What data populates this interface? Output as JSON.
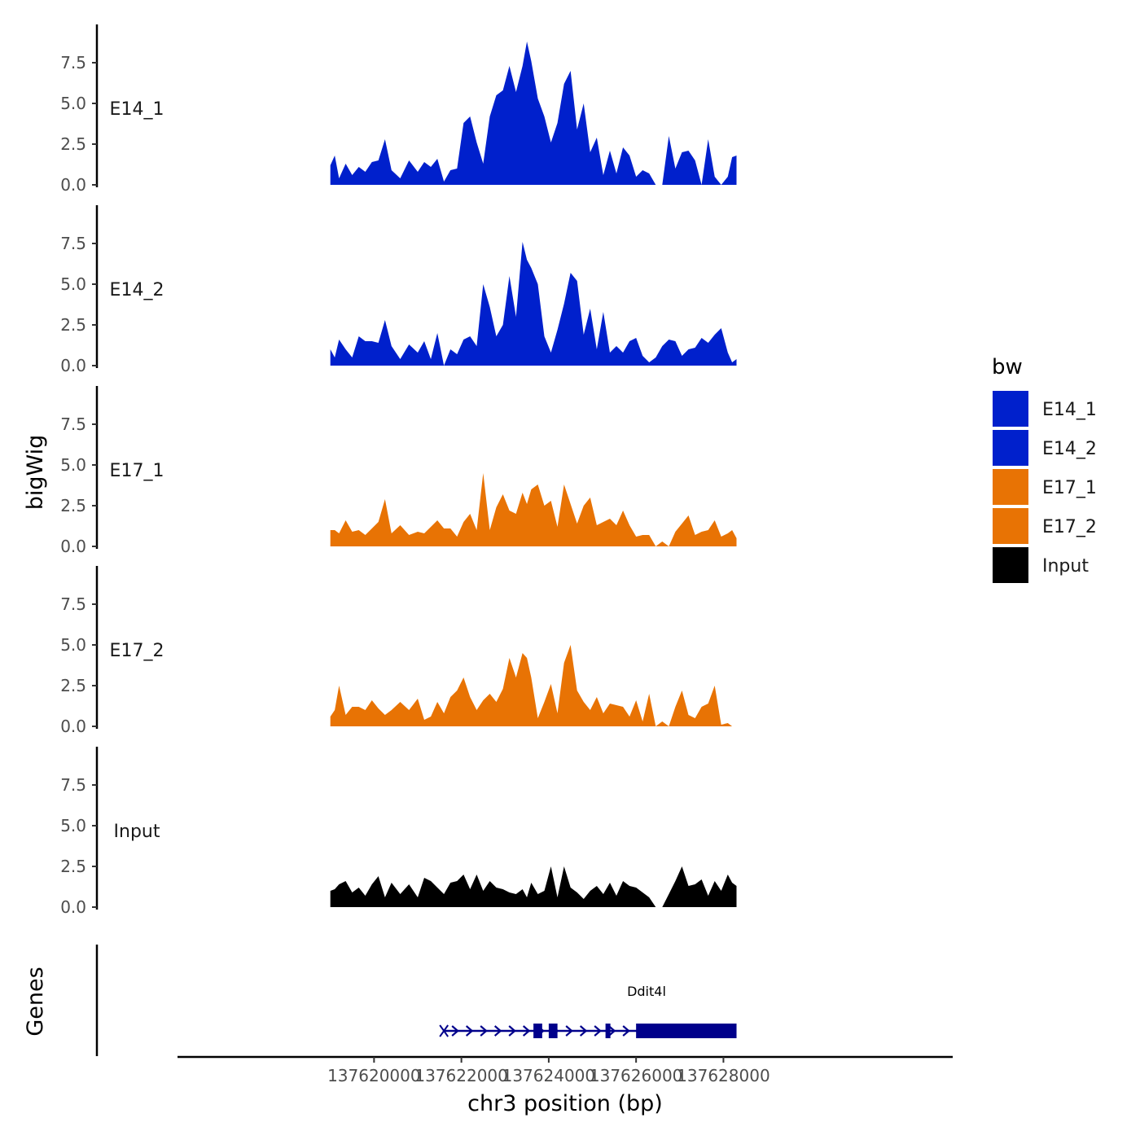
{
  "chart_data": {
    "type": "area",
    "chromosome": "chr3",
    "xlabel": "chr3 position (bp)",
    "ylabel": "bigWig",
    "genes_label": "Genes",
    "xlim": [
      137615500,
      137633250
    ],
    "x_ticks": [
      137620000,
      137622000,
      137624000,
      137626000,
      137628000
    ],
    "x_tick_labels": [
      "137620000",
      "137622000",
      "137624000",
      "137626000",
      "137628000"
    ],
    "ylim": [
      0,
      10
    ],
    "y_ticks": [
      0,
      2.5,
      5,
      7.5
    ],
    "y_tick_labels": [
      "0.0",
      "2.5",
      "5.0",
      "7.5"
    ],
    "legend": {
      "title": "bw",
      "position": "right",
      "entries": [
        {
          "label": "E14_1",
          "color": "#0020CC"
        },
        {
          "label": "E14_2",
          "color": "#0020CC"
        },
        {
          "label": "E17_1",
          "color": "#E87304"
        },
        {
          "label": "E17_2",
          "color": "#E87304"
        },
        {
          "label": "Input",
          "color": "#000000"
        }
      ]
    },
    "series": [
      {
        "name": "E14_1",
        "color": "#0020CC",
        "x": [
          137619000,
          137619100,
          137619200,
          137619350,
          137619500,
          137619650,
          137619800,
          137619950,
          137620100,
          137620250,
          137620400,
          137620600,
          137620800,
          137621000,
          137621150,
          137621300,
          137621450,
          137621600,
          137621750,
          137621900,
          137622050,
          137622200,
          137622350,
          137622500,
          137622650,
          137622800,
          137622950,
          137623100,
          137623250,
          137623400,
          137623500,
          137623600,
          137623750,
          137623900,
          137624050,
          137624200,
          137624350,
          137624500,
          137624650,
          137624800,
          137624950,
          137625100,
          137625250,
          137625400,
          137625550,
          137625700,
          137625850,
          137626000,
          137626150,
          137626300,
          137626450,
          137626600,
          137626750,
          137626900,
          137627050,
          137627200,
          137627350,
          137627500,
          137627650,
          137627800,
          137627950,
          137628100,
          137628200,
          137628300
        ],
        "y": [
          1.2,
          1.8,
          0.4,
          1.3,
          0.6,
          1.1,
          0.8,
          1.4,
          1.5,
          2.8,
          0.9,
          0.4,
          1.5,
          0.8,
          1.4,
          1.1,
          1.6,
          0.2,
          0.9,
          1.0,
          3.8,
          4.2,
          2.6,
          1.3,
          4.2,
          5.5,
          5.8,
          7.3,
          5.7,
          7.3,
          8.8,
          7.6,
          5.3,
          4.2,
          2.6,
          3.8,
          6.2,
          7.0,
          3.4,
          5.0,
          2.0,
          2.9,
          0.6,
          2.1,
          0.7,
          2.3,
          1.8,
          0.5,
          0.9,
          0.7,
          0.0,
          0.0,
          3.0,
          1.0,
          2.0,
          2.1,
          1.5,
          0.0,
          2.8,
          0.5,
          0.0,
          0.5,
          1.7,
          1.8
        ]
      },
      {
        "name": "E14_2",
        "color": "#0020CC",
        "x": [
          137619000,
          137619100,
          137619200,
          137619350,
          137619500,
          137619650,
          137619800,
          137619950,
          137620100,
          137620250,
          137620400,
          137620600,
          137620800,
          137621000,
          137621150,
          137621300,
          137621450,
          137621600,
          137621750,
          137621900,
          137622050,
          137622200,
          137622350,
          137622500,
          137622650,
          137622800,
          137622950,
          137623100,
          137623250,
          137623400,
          137623500,
          137623600,
          137623750,
          137623900,
          137624050,
          137624200,
          137624350,
          137624500,
          137624650,
          137624800,
          137624950,
          137625100,
          137625250,
          137625400,
          137625550,
          137625700,
          137625850,
          137626000,
          137626150,
          137626300,
          137626450,
          137626600,
          137626750,
          137626900,
          137627050,
          137627200,
          137627350,
          137627500,
          137627650,
          137627800,
          137627950,
          137628100,
          137628200,
          137628300
        ],
        "y": [
          1.0,
          0.5,
          1.6,
          1.0,
          0.5,
          1.8,
          1.5,
          1.5,
          1.4,
          2.8,
          1.2,
          0.4,
          1.3,
          0.8,
          1.5,
          0.4,
          2.0,
          0.0,
          1.0,
          0.7,
          1.6,
          1.8,
          1.2,
          5.0,
          3.6,
          1.8,
          2.5,
          5.5,
          3.0,
          7.6,
          6.5,
          6.0,
          5.0,
          1.8,
          0.8,
          2.2,
          3.8,
          5.7,
          5.2,
          1.9,
          3.5,
          1.0,
          3.3,
          0.8,
          1.2,
          0.8,
          1.5,
          1.7,
          0.6,
          0.2,
          0.5,
          1.2,
          1.6,
          1.5,
          0.6,
          1.0,
          1.1,
          1.7,
          1.4,
          1.9,
          2.3,
          0.8,
          0.2,
          0.4
        ]
      },
      {
        "name": "E17_1",
        "color": "#E87304",
        "x": [
          137619000,
          137619100,
          137619200,
          137619350,
          137619500,
          137619650,
          137619800,
          137619950,
          137620100,
          137620250,
          137620400,
          137620600,
          137620800,
          137621000,
          137621150,
          137621300,
          137621450,
          137621600,
          137621750,
          137621900,
          137622050,
          137622200,
          137622350,
          137622500,
          137622650,
          137622800,
          137622950,
          137623100,
          137623250,
          137623400,
          137623500,
          137623600,
          137623750,
          137623900,
          137624050,
          137624200,
          137624350,
          137624500,
          137624650,
          137624800,
          137624950,
          137625100,
          137625250,
          137625400,
          137625550,
          137625700,
          137625850,
          137626000,
          137626150,
          137626300,
          137626450,
          137626600,
          137626750,
          137626900,
          137627050,
          137627200,
          137627350,
          137627500,
          137627650,
          137627800,
          137627950,
          137628100,
          137628200,
          137628300
        ],
        "y": [
          1.0,
          1.0,
          0.8,
          1.6,
          0.9,
          1.0,
          0.7,
          1.1,
          1.5,
          2.9,
          0.8,
          1.3,
          0.7,
          0.9,
          0.8,
          1.2,
          1.6,
          1.1,
          1.1,
          0.6,
          1.5,
          2.0,
          1.0,
          4.5,
          1.0,
          2.4,
          3.2,
          2.2,
          2.0,
          3.3,
          2.6,
          3.5,
          3.8,
          2.5,
          2.8,
          1.2,
          3.8,
          2.6,
          1.4,
          2.5,
          3.0,
          1.3,
          1.5,
          1.7,
          1.3,
          2.2,
          1.3,
          0.6,
          0.7,
          0.7,
          0.0,
          0.3,
          0.0,
          0.9,
          1.4,
          1.9,
          0.7,
          0.9,
          1.0,
          1.6,
          0.6,
          0.8,
          1.0,
          0.5
        ]
      },
      {
        "name": "E17_2",
        "color": "#E87304",
        "x": [
          137619000,
          137619100,
          137619200,
          137619350,
          137619500,
          137619650,
          137619800,
          137619950,
          137620100,
          137620250,
          137620400,
          137620600,
          137620800,
          137621000,
          137621150,
          137621300,
          137621450,
          137621600,
          137621750,
          137621900,
          137622050,
          137622200,
          137622350,
          137622500,
          137622650,
          137622800,
          137622950,
          137623100,
          137623250,
          137623400,
          137623500,
          137623600,
          137623750,
          137623900,
          137624050,
          137624200,
          137624350,
          137624500,
          137624650,
          137624800,
          137624950,
          137625100,
          137625250,
          137625400,
          137625550,
          137625700,
          137625850,
          137626000,
          137626150,
          137626300,
          137626450,
          137626600,
          137626750,
          137626900,
          137627050,
          137627200,
          137627350,
          137627500,
          137627650,
          137627800,
          137627950,
          137628100,
          137628200,
          137628300
        ],
        "y": [
          0.6,
          1.0,
          2.5,
          0.7,
          1.2,
          1.2,
          1.0,
          1.6,
          1.1,
          0.7,
          1.0,
          1.5,
          1.0,
          1.7,
          0.4,
          0.6,
          1.5,
          0.8,
          1.8,
          2.2,
          3.0,
          1.8,
          1.0,
          1.6,
          2.0,
          1.5,
          2.3,
          4.2,
          3.0,
          4.5,
          4.2,
          3.0,
          0.5,
          1.5,
          2.6,
          0.8,
          3.9,
          5.0,
          2.2,
          1.5,
          1.0,
          1.8,
          0.8,
          1.4,
          1.3,
          1.2,
          0.6,
          1.6,
          0.3,
          2.0,
          0.0,
          0.3,
          0.0,
          1.2,
          2.2,
          0.7,
          0.5,
          1.2,
          1.4,
          2.5,
          0.1,
          0.2,
          0.0,
          0.0
        ]
      },
      {
        "name": "Input",
        "color": "#000000",
        "x": [
          137619000,
          137619100,
          137619200,
          137619350,
          137619500,
          137619650,
          137619800,
          137619950,
          137620100,
          137620250,
          137620400,
          137620600,
          137620800,
          137621000,
          137621150,
          137621300,
          137621450,
          137621600,
          137621750,
          137621900,
          137622050,
          137622200,
          137622350,
          137622500,
          137622650,
          137622800,
          137622950,
          137623100,
          137623250,
          137623400,
          137623500,
          137623600,
          137623750,
          137623900,
          137624050,
          137624200,
          137624350,
          137624500,
          137624650,
          137624800,
          137624950,
          137625100,
          137625250,
          137625400,
          137625550,
          137625700,
          137625850,
          137626000,
          137626150,
          137626300,
          137626450,
          137626600,
          137626750,
          137626900,
          137627050,
          137627200,
          137627350,
          137627500,
          137627650,
          137627800,
          137627950,
          137628100,
          137628200,
          137628300
        ],
        "y": [
          1.0,
          1.1,
          1.4,
          1.6,
          0.9,
          1.2,
          0.7,
          1.4,
          1.9,
          0.6,
          1.5,
          0.8,
          1.4,
          0.6,
          1.8,
          1.6,
          1.2,
          0.8,
          1.5,
          1.6,
          2.0,
          1.1,
          2.0,
          1.0,
          1.6,
          1.2,
          1.1,
          0.9,
          0.8,
          1.1,
          0.6,
          1.5,
          0.8,
          1.0,
          2.5,
          0.6,
          2.5,
          1.2,
          0.9,
          0.5,
          1.0,
          1.3,
          0.8,
          1.5,
          0.7,
          1.6,
          1.3,
          1.2,
          0.9,
          0.6,
          0.0,
          0.0,
          0.8,
          1.6,
          2.5,
          1.3,
          1.4,
          1.7,
          0.7,
          1.6,
          1.0,
          2.0,
          1.5,
          1.3
        ]
      }
    ],
    "genes": [
      {
        "name": "Ddit4l",
        "start": 137621600,
        "end": 137628300,
        "strand": "+",
        "color": "#00008B",
        "exons": [
          {
            "start": 137623650,
            "end": 137623850
          },
          {
            "start": 137624000,
            "end": 137624200
          },
          {
            "start": 137625300,
            "end": 137625380
          },
          {
            "start": 137626000,
            "end": 137628300
          }
        ]
      }
    ]
  }
}
